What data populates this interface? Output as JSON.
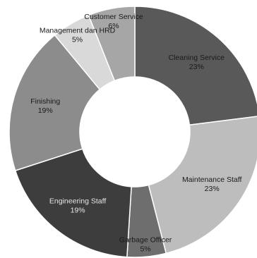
{
  "chart_data": {
    "type": "pie",
    "donut": true,
    "title": "",
    "start_angle_deg": 0,
    "direction": "clockwise",
    "slices": [
      {
        "label": "Cleaning  Service",
        "value": 23,
        "percent_label": "23%",
        "color": "#595959",
        "text_color": "#1a1a1a"
      },
      {
        "label": "Maintenance  Staff",
        "value": 23,
        "percent_label": "23%",
        "color": "#bdbdbd",
        "text_color": "#1a1a1a"
      },
      {
        "label": "Garbage Officer",
        "value": 5,
        "percent_label": "5%",
        "color": "#6e6e6e",
        "text_color": "#1a1a1a"
      },
      {
        "label": "Engineering Staff",
        "value": 19,
        "percent_label": "19%",
        "color": "#3d3d3d",
        "text_color": "#e6e6e6"
      },
      {
        "label": "Finishing",
        "value": 19,
        "percent_label": "19%",
        "color": "#8c8c8c",
        "text_color": "#1a1a1a"
      },
      {
        "label": "Management dan HRD",
        "value": 5,
        "percent_label": "5%",
        "color": "#d9d9d9",
        "text_color": "#1a1a1a"
      },
      {
        "label": "Customer Service",
        "value": 6,
        "percent_label": "6%",
        "color": "#a6a6a6",
        "text_color": "#1a1a1a"
      }
    ]
  }
}
